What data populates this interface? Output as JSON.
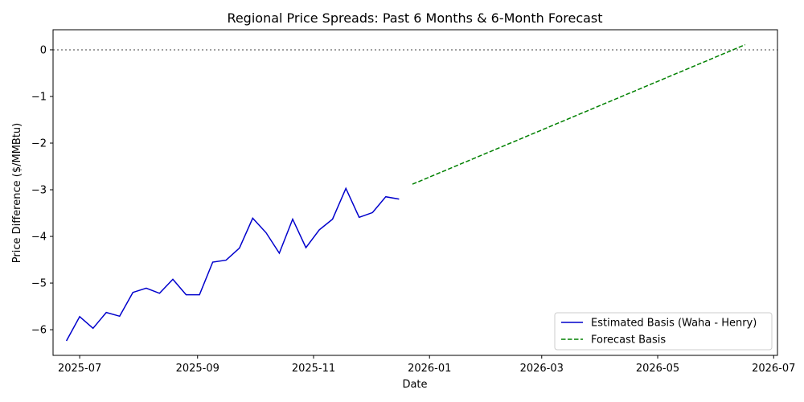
{
  "chart_data": {
    "type": "line",
    "title": "Regional Price Spreads: Past 6 Months & 6-Month Forecast",
    "xlabel": "Date",
    "ylabel": "Price Difference ($/MMBtu)",
    "xlim": [
      "2025-06-17",
      "2026-07-03"
    ],
    "ylim": [
      -6.55,
      0.43
    ],
    "x_ticks": [
      "2025-07-01",
      "2025-09-01",
      "2025-11-01",
      "2026-01-01",
      "2026-03-01",
      "2026-05-01",
      "2026-07-01"
    ],
    "x_tick_labels": [
      "2025-07",
      "2025-09",
      "2025-11",
      "2026-01",
      "2026-03",
      "2026-05",
      "2026-07"
    ],
    "y_ticks": [
      0,
      -1,
      -2,
      -3,
      -4,
      -5,
      -6
    ],
    "y_tick_labels": [
      "0",
      "−1",
      "−2",
      "−3",
      "−4",
      "−5",
      "−6"
    ],
    "reference_line": {
      "y": 0,
      "style": "dotted",
      "color": "#808080"
    },
    "legend_position": "lower-right",
    "series": [
      {
        "name": "Estimated Basis (Waha - Henry)",
        "color": "#0000cc",
        "style": "solid",
        "points": [
          [
            "2025-06-24",
            -6.24
          ],
          [
            "2025-07-01",
            -5.72
          ],
          [
            "2025-07-08",
            -5.97
          ],
          [
            "2025-07-15",
            -5.63
          ],
          [
            "2025-07-22",
            -5.71
          ],
          [
            "2025-07-29",
            -5.2
          ],
          [
            "2025-08-05",
            -5.11
          ],
          [
            "2025-08-12",
            -5.22
          ],
          [
            "2025-08-19",
            -4.92
          ],
          [
            "2025-08-26",
            -5.25
          ],
          [
            "2025-09-02",
            -5.25
          ],
          [
            "2025-09-09",
            -4.55
          ],
          [
            "2025-09-16",
            -4.51
          ],
          [
            "2025-09-23",
            -4.25
          ],
          [
            "2025-09-30",
            -3.61
          ],
          [
            "2025-10-07",
            -3.92
          ],
          [
            "2025-10-14",
            -4.36
          ],
          [
            "2025-10-21",
            -3.63
          ],
          [
            "2025-10-28",
            -4.24
          ],
          [
            "2025-11-04",
            -3.86
          ],
          [
            "2025-11-11",
            -3.63
          ],
          [
            "2025-11-18",
            -2.97
          ],
          [
            "2025-11-25",
            -3.59
          ],
          [
            "2025-12-02",
            -3.49
          ],
          [
            "2025-12-09",
            -3.15
          ],
          [
            "2025-12-16",
            -3.2
          ]
        ]
      },
      {
        "name": "Forecast Basis",
        "color": "#008000",
        "style": "dashed",
        "points": [
          [
            "2025-12-23",
            -2.88
          ],
          [
            "2026-06-16",
            0.11
          ]
        ]
      }
    ]
  }
}
